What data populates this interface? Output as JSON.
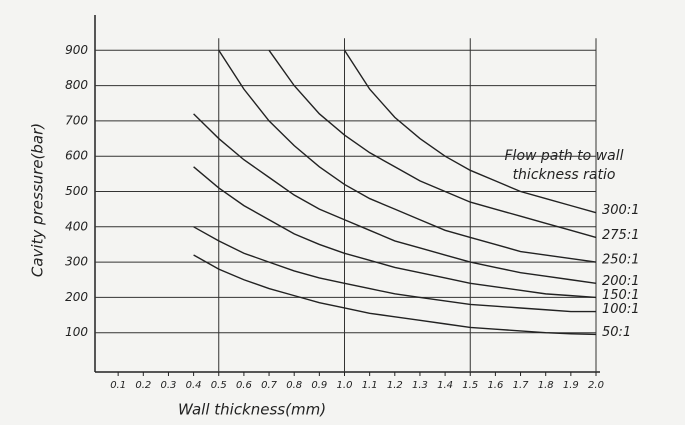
{
  "chart_data": {
    "type": "line",
    "xlabel": "Wall thickness(mm)",
    "ylabel": "Cavity pressure(bar)",
    "annotation": [
      "Flow path to wall",
      "thickness ratio"
    ],
    "x": [
      0.4,
      0.5,
      0.6,
      0.7,
      0.8,
      0.9,
      1.0,
      1.1,
      1.2,
      1.3,
      1.4,
      1.5,
      1.6,
      1.7,
      1.8,
      1.9,
      2.0
    ],
    "series": [
      {
        "name": "300:1",
        "color": "#222222",
        "values": [
          null,
          null,
          null,
          null,
          null,
          null,
          900,
          790,
          710,
          650,
          600,
          560,
          530,
          500,
          480,
          460,
          440
        ]
      },
      {
        "name": "275:1",
        "color": "#222222",
        "values": [
          null,
          null,
          null,
          900,
          800,
          720,
          660,
          610,
          570,
          530,
          500,
          470,
          450,
          430,
          410,
          390,
          370
        ]
      },
      {
        "name": "250:1",
        "color": "#222222",
        "values": [
          null,
          900,
          790,
          700,
          630,
          570,
          520,
          480,
          450,
          420,
          390,
          370,
          350,
          330,
          320,
          310,
          300
        ]
      },
      {
        "name": "200:1",
        "color": "#222222",
        "values": [
          720,
          650,
          590,
          540,
          490,
          450,
          420,
          390,
          360,
          340,
          320,
          300,
          285,
          270,
          260,
          250,
          240
        ]
      },
      {
        "name": "150:1",
        "color": "#222222",
        "values": [
          570,
          510,
          460,
          420,
          380,
          350,
          325,
          305,
          285,
          270,
          255,
          240,
          230,
          220,
          210,
          205,
          200
        ]
      },
      {
        "name": "100:1",
        "color": "#222222",
        "values": [
          400,
          360,
          325,
          300,
          275,
          255,
          240,
          225,
          210,
          200,
          190,
          180,
          175,
          170,
          165,
          160,
          160
        ]
      },
      {
        "name": "50:1",
        "color": "#222222",
        "values": [
          320,
          280,
          250,
          225,
          205,
          185,
          170,
          155,
          145,
          135,
          125,
          115,
          110,
          105,
          100,
          97,
          95
        ]
      }
    ],
    "xlim": [
      0,
      2.0
    ],
    "ylim": [
      0,
      1000
    ],
    "xticks": [
      0.1,
      0.2,
      0.3,
      0.4,
      0.5,
      0.6,
      0.7,
      0.8,
      0.9,
      {
        "value": 1.0,
        "label": "1.0"
      },
      1.1,
      1.2,
      1.3,
      1.4,
      1.5,
      1.6,
      1.7,
      1.8,
      1.9,
      {
        "value": 2.0,
        "label": "2.0"
      }
    ],
    "yticks": [
      100,
      200,
      300,
      400,
      500,
      600,
      700,
      800,
      900
    ],
    "x_grid_at": [
      0.5,
      1.0,
      1.5,
      2.0
    ],
    "grid": true
  }
}
